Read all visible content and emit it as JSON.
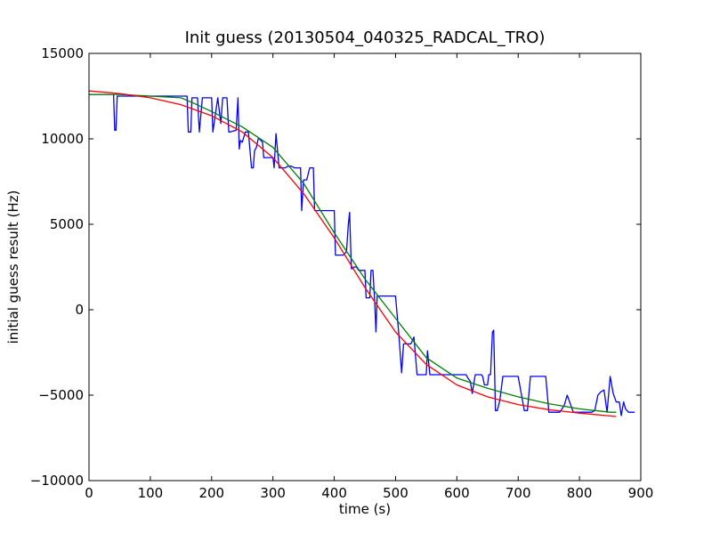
{
  "chart_data": {
    "type": "line",
    "title": "Init guess (20130504_040325_RADCAL_TRO)",
    "xlabel": "time (s)",
    "ylabel": "initial guess result (Hz)",
    "xlim": [
      0,
      900
    ],
    "ylim": [
      -10000,
      15000
    ],
    "x_ticks": [
      0,
      100,
      200,
      300,
      400,
      500,
      600,
      700,
      800,
      900
    ],
    "y_ticks": [
      -10000,
      -5000,
      0,
      5000,
      10000,
      15000
    ],
    "grid": false,
    "legend": "none",
    "series": [
      {
        "color": "#0000ff",
        "x": [
          0,
          40,
          42,
          44,
          46,
          100,
          160,
          162,
          166,
          168,
          175,
          177,
          180,
          185,
          195,
          200,
          202,
          210,
          215,
          218,
          225,
          228,
          230,
          240,
          243,
          245,
          247,
          250,
          255,
          260,
          265,
          268,
          270,
          273,
          276,
          278,
          283,
          285,
          290,
          295,
          300,
          302,
          305,
          310,
          320,
          325,
          330,
          335,
          340,
          345,
          347,
          350,
          355,
          360,
          366,
          368,
          375,
          380,
          385,
          390,
          400,
          402,
          410,
          415,
          420,
          423,
          425,
          428,
          430,
          432,
          436,
          440,
          445,
          450,
          452,
          458,
          460,
          463,
          466,
          468,
          470,
          473,
          476,
          480,
          490,
          500,
          505,
          510,
          513,
          520,
          525,
          530,
          535,
          550,
          552,
          556,
          560,
          570,
          580,
          590,
          600,
          605,
          615,
          618,
          622,
          625,
          630,
          635,
          640,
          642,
          645,
          650,
          652,
          655,
          658,
          660,
          663,
          666,
          670,
          675,
          680,
          690,
          700,
          710,
          715,
          720,
          725,
          735,
          740,
          745,
          750,
          760,
          768,
          775,
          780,
          790,
          800,
          820,
          825,
          830,
          835,
          840,
          845,
          850,
          855,
          860,
          865,
          868,
          872,
          875,
          880,
          890
        ],
        "y": [
          12600,
          12600,
          10500,
          10500,
          12500,
          12500,
          12500,
          10400,
          10400,
          12400,
          12400,
          12400,
          10400,
          12400,
          12400,
          12400,
          10400,
          12400,
          10900,
          12400,
          12400,
          10400,
          10400,
          10500,
          12400,
          9400,
          9900,
          9800,
          10400,
          10400,
          8300,
          8300,
          9300,
          9500,
          10000,
          10000,
          9800,
          8900,
          8900,
          8900,
          8900,
          8300,
          10300,
          8300,
          8300,
          8400,
          8400,
          8300,
          8300,
          8300,
          5800,
          7600,
          7600,
          8300,
          8300,
          5800,
          5800,
          5800,
          5800,
          5800,
          5800,
          3200,
          3200,
          3200,
          3400,
          5000,
          5700,
          2400,
          2400,
          2500,
          2500,
          2300,
          2300,
          2300,
          700,
          700,
          2300,
          2300,
          500,
          -1300,
          800,
          800,
          800,
          800,
          800,
          800,
          -1300,
          -3700,
          -2000,
          -2000,
          -2000,
          -1600,
          -3800,
          -3800,
          -2400,
          -3800,
          -3800,
          -3800,
          -3800,
          -3800,
          -3800,
          -3800,
          -3800,
          -4000,
          -4200,
          -4900,
          -3800,
          -3800,
          -3800,
          -3900,
          -4400,
          -4400,
          -3800,
          -3800,
          -1300,
          -1200,
          -5900,
          -5900,
          -5300,
          -3900,
          -3900,
          -3900,
          -3900,
          -5900,
          -5900,
          -3900,
          -3900,
          -3900,
          -3900,
          -3900,
          -6000,
          -6000,
          -6000,
          -5600,
          -5000,
          -6000,
          -6000,
          -6000,
          -5900,
          -5000,
          -4800,
          -4700,
          -6000,
          -3900,
          -4900,
          -5400,
          -5400,
          -6200,
          -5400,
          -5800,
          -6000,
          -6000
        ]
      },
      {
        "color": "#008000",
        "x": [
          0,
          50,
          100,
          150,
          170,
          200,
          250,
          300,
          350,
          400,
          450,
          500,
          550,
          600,
          650,
          700,
          750,
          800,
          850,
          860
        ],
        "y": [
          12600,
          12600,
          12500,
          12400,
          12100,
          11600,
          10700,
          9500,
          7400,
          4500,
          1800,
          -500,
          -2800,
          -4000,
          -4600,
          -5100,
          -5500,
          -5800,
          -6000,
          -6000
        ]
      },
      {
        "color": "#ff0000",
        "x": [
          0,
          50,
          100,
          150,
          200,
          250,
          300,
          350,
          400,
          450,
          500,
          550,
          600,
          650,
          700,
          750,
          800,
          860
        ],
        "y": [
          12800,
          12650,
          12400,
          12000,
          11350,
          10400,
          8900,
          6800,
          4200,
          1300,
          -1300,
          -3200,
          -4400,
          -5100,
          -5550,
          -5850,
          -6050,
          -6250
        ]
      }
    ]
  }
}
